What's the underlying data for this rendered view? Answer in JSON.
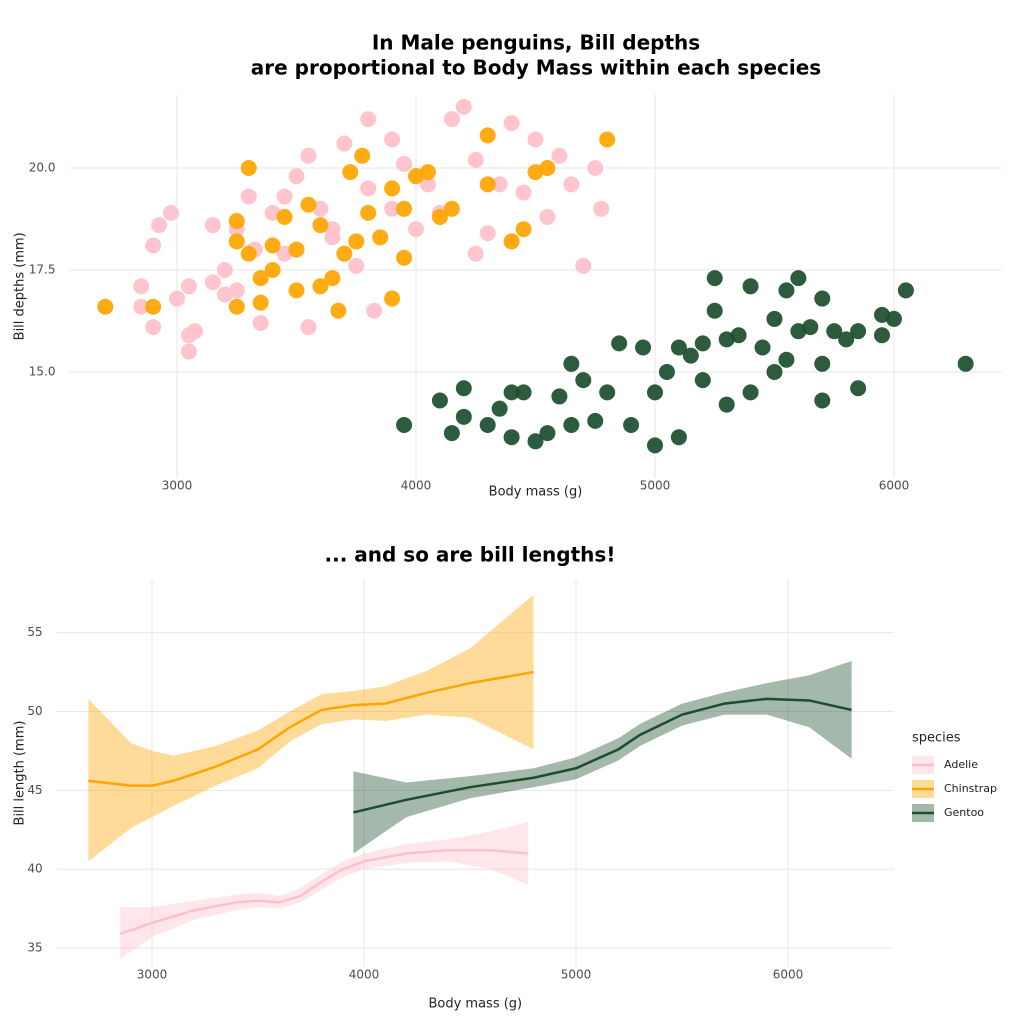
{
  "chart_data": [
    {
      "type": "scatter",
      "title": [
        "In Male penguins, Bill depths",
        "are proportional to Body Mass within each species"
      ],
      "x_label": "Body mass (g)",
      "y_label": "Bill depths (mm)",
      "xlim": [
        2550,
        6450
      ],
      "ylim": [
        12.4,
        21.8
      ],
      "xticks": [
        3000,
        4000,
        5000,
        6000
      ],
      "yticks": [
        {
          "value": 15,
          "label": "15.0"
        },
        17.5,
        {
          "value": 20,
          "label": "20.0"
        }
      ],
      "grid": true,
      "series": [
        {
          "color": "#ffc0cb",
          "x": [
            2850,
            2850,
            2900,
            2900,
            2925,
            2975,
            3000,
            3050,
            3050,
            3050,
            3075,
            3150,
            3150,
            3200,
            3200,
            3250,
            3300,
            3325,
            3350,
            3400,
            3450,
            3500,
            3550,
            3550,
            3600,
            3650,
            3700,
            3750,
            3800,
            3800,
            3825,
            3900,
            3900,
            3950,
            4000,
            4050,
            4100,
            4150,
            4200,
            4250,
            4300,
            4350,
            4400,
            4450,
            4500,
            4550,
            4600,
            4650,
            4700,
            4750,
            4775,
            3650,
            3450,
            3250,
            4250,
            4400
          ],
          "values": [
            17.1,
            16.6,
            18.1,
            16.1,
            18.6,
            18.9,
            16.8,
            15.9,
            15.5,
            17.1,
            16.0,
            18.6,
            17.2,
            17.5,
            16.9,
            18.5,
            19.3,
            18.0,
            16.2,
            18.9,
            19.3,
            19.8,
            20.3,
            16.1,
            19.0,
            18.5,
            20.6,
            17.6,
            21.2,
            19.5,
            16.5,
            20.7,
            19.0,
            20.1,
            18.5,
            19.6,
            18.9,
            21.2,
            21.5,
            20.2,
            18.4,
            19.6,
            21.1,
            19.4,
            20.7,
            18.8,
            20.3,
            19.6,
            17.6,
            20.0,
            19.0,
            18.3,
            17.9,
            17.0,
            17.9,
            18.2
          ]
        },
        {
          "color": "#ffa500",
          "x": [
            2700,
            2900,
            3250,
            3250,
            3300,
            3300,
            3350,
            3350,
            3400,
            3400,
            3450,
            3500,
            3500,
            3550,
            3600,
            3650,
            3675,
            3700,
            3725,
            3750,
            3775,
            3800,
            3850,
            3900,
            3900,
            3950,
            4000,
            4050,
            4100,
            4150,
            4300,
            4300,
            4400,
            4450,
            4500,
            4550,
            4800,
            3250,
            3600,
            3950
          ],
          "values": [
            16.6,
            16.6,
            16.6,
            18.2,
            20.0,
            17.9,
            17.3,
            16.7,
            17.5,
            18.1,
            18.8,
            18.0,
            17.0,
            19.1,
            18.6,
            17.3,
            16.5,
            17.9,
            19.9,
            18.2,
            20.3,
            18.9,
            18.3,
            19.5,
            16.8,
            19.0,
            19.8,
            19.9,
            18.8,
            19.0,
            20.8,
            19.6,
            18.2,
            18.5,
            19.9,
            20.0,
            20.7,
            18.7,
            17.1,
            17.8
          ]
        },
        {
          "color": "#1b4d2e",
          "x": [
            3950,
            4100,
            4150,
            4200,
            4200,
            4300,
            4350,
            4400,
            4400,
            4450,
            4500,
            4550,
            4600,
            4650,
            4650,
            4700,
            4750,
            4800,
            4850,
            4900,
            4950,
            5000,
            5000,
            5050,
            5100,
            5100,
            5150,
            5200,
            5200,
            5250,
            5250,
            5300,
            5300,
            5350,
            5400,
            5400,
            5450,
            5500,
            5500,
            5550,
            5550,
            5600,
            5600,
            5650,
            5700,
            5700,
            5700,
            5750,
            5800,
            5850,
            5850,
            5950,
            5950,
            6000,
            6050,
            6300
          ],
          "values": [
            13.7,
            14.3,
            13.5,
            14.6,
            13.9,
            13.7,
            14.1,
            14.5,
            13.4,
            14.5,
            13.3,
            13.5,
            14.4,
            15.2,
            13.7,
            14.8,
            13.8,
            14.5,
            15.7,
            13.7,
            15.6,
            14.5,
            13.2,
            15.0,
            13.4,
            15.6,
            15.4,
            15.7,
            14.8,
            17.3,
            16.5,
            14.2,
            15.8,
            15.9,
            17.1,
            14.5,
            15.6,
            16.3,
            15.0,
            17.0,
            15.3,
            17.3,
            16.0,
            16.1,
            16.8,
            14.3,
            15.2,
            16.0,
            15.8,
            14.6,
            16.0,
            16.4,
            15.9,
            16.3,
            17.0,
            15.2
          ]
        }
      ]
    },
    {
      "type": "line",
      "title": "... and so are bill lengths!",
      "x_label": "Body mass (g)",
      "y_label": "Bill length (mm)",
      "xlim": [
        2550,
        6500
      ],
      "ylim": [
        33.8,
        58.4
      ],
      "xticks": [
        3000,
        4000,
        5000,
        6000
      ],
      "yticks": [
        35,
        40,
        45,
        50,
        55
      ],
      "grid": true,
      "legend": {
        "title": "species",
        "position": "right"
      },
      "series": [
        {
          "name": "Adelie",
          "color": "#ffc0cb",
          "x": [
            2850,
            3000,
            3200,
            3400,
            3500,
            3600,
            3700,
            3800,
            3900,
            4000,
            4200,
            4400,
            4600,
            4775
          ],
          "values": [
            35.9,
            36.6,
            37.4,
            37.9,
            38.0,
            37.9,
            38.3,
            39.2,
            40.0,
            40.5,
            41.0,
            41.2,
            41.2,
            41.0
          ],
          "lower": [
            34.3,
            35.7,
            36.8,
            37.4,
            37.6,
            37.5,
            37.9,
            38.7,
            39.5,
            40.0,
            40.4,
            40.5,
            40.0,
            39.0
          ],
          "upper": [
            37.6,
            37.6,
            38.0,
            38.4,
            38.5,
            38.3,
            38.8,
            39.7,
            40.5,
            41.0,
            41.6,
            41.9,
            42.4,
            43.0
          ]
        },
        {
          "name": "Chinstrap",
          "color": "#ffa500",
          "x": [
            2700,
            2900,
            3000,
            3100,
            3300,
            3500,
            3650,
            3800,
            3950,
            4100,
            4300,
            4500,
            4800
          ],
          "values": [
            45.6,
            45.3,
            45.3,
            45.6,
            46.5,
            47.6,
            49.0,
            50.1,
            50.4,
            50.5,
            51.2,
            51.8,
            52.5
          ],
          "lower": [
            40.5,
            42.6,
            43.3,
            44.0,
            45.3,
            46.4,
            48.1,
            49.2,
            49.5,
            49.4,
            49.8,
            49.6,
            47.6
          ],
          "upper": [
            50.8,
            48.0,
            47.5,
            47.2,
            47.8,
            48.8,
            50.0,
            51.1,
            51.3,
            51.6,
            52.6,
            54.0,
            57.4
          ]
        },
        {
          "name": "Gentoo",
          "color": "#1b4d2e",
          "x": [
            3950,
            4200,
            4500,
            4800,
            5000,
            5200,
            5300,
            5500,
            5700,
            5900,
            6100,
            6300
          ],
          "values": [
            43.6,
            44.4,
            45.2,
            45.8,
            46.4,
            47.6,
            48.5,
            49.8,
            50.5,
            50.8,
            50.7,
            50.1
          ],
          "lower": [
            41.0,
            43.3,
            44.5,
            45.2,
            45.7,
            46.9,
            47.8,
            49.1,
            49.8,
            49.8,
            49.0,
            47.0
          ],
          "upper": [
            46.2,
            45.5,
            45.9,
            46.4,
            47.1,
            48.3,
            49.2,
            50.5,
            51.2,
            51.8,
            52.3,
            53.2
          ]
        }
      ]
    }
  ]
}
